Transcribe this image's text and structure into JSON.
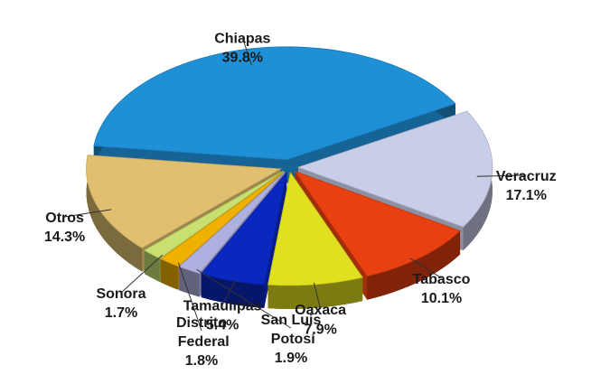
{
  "chart_data": {
    "type": "pie",
    "categories": [
      "Chiapas",
      "Veracruz",
      "Tabasco",
      "Oaxaca",
      "Tamaulipas",
      "San Luis Potosí",
      "Distrito Federal",
      "Sonora",
      "Otros"
    ],
    "values": [
      39.8,
      17.1,
      10.1,
      7.9,
      5.4,
      1.9,
      1.8,
      1.7,
      14.3
    ],
    "value_labels": [
      "39.8%",
      "17.1%",
      "10.1%",
      "7.9%",
      "5.4%",
      "1.9%",
      "1.8%",
      "1.7%",
      "14.3%"
    ],
    "colors": [
      "#1f8fd6",
      "#c9cde8",
      "#e84010",
      "#e0e020",
      "#0a28c0",
      "#b0b0e0",
      "#f0b000",
      "#c8e070",
      "#e0c070"
    ]
  }
}
